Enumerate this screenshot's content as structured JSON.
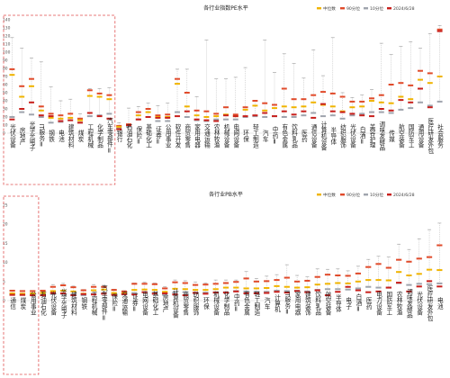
{
  "legend_labels": [
    "中位数",
    "90分位",
    "10分位",
    "2024/6/28"
  ],
  "chart_data": [
    {
      "type": "box",
      "title": "各行业指数PE水平",
      "ylim": [
        0,
        140
      ],
      "yticks": [
        0,
        10,
        20,
        30,
        40,
        50,
        60,
        70,
        80,
        90,
        100,
        110,
        120,
        130,
        140
      ],
      "grid": false,
      "legend_position": "top-right",
      "categories": [
        "光伏设备",
        "房地产",
        "光学光电子",
        "IT服务Ⅱ",
        "钢铁",
        "电池",
        "建筑材料",
        "煤炭",
        "工程机械",
        "化学制品",
        "汽车零部件Ⅱ",
        "银行",
        "石油石化",
        "保险Ⅱ",
        "基础化工",
        "证券Ⅱ",
        "公用事业",
        "软件开发",
        "商贸零售",
        "家用电器",
        "交通运输",
        "农林牧渔",
        "机械设备",
        "电网设备",
        "环保",
        "轻工制造",
        "汽车",
        "中药Ⅱ",
        "有色金属",
        "饮料乳品",
        "医药",
        "通信设备",
        "计算机设备",
        "半导体",
        "纺织服饰",
        "光伏设备",
        "白酒Ⅱ",
        "美容护理",
        "调味发酵品",
        "传媒",
        "航空装备",
        "国防军工",
        "通用设备",
        "医疗研发外包",
        "社会服务"
      ],
      "series": [
        {
          "name": "90分位",
          "values": [
            79,
            58,
            67,
            33,
            24,
            22,
            24,
            18,
            53,
            49,
            47,
            9,
            11,
            26,
            30,
            22,
            23,
            67,
            50,
            28,
            27,
            24,
            32,
            23,
            32,
            40,
            37,
            35,
            55,
            42,
            42,
            47,
            51,
            49,
            45,
            39,
            39,
            43,
            47,
            60,
            62,
            59,
            77,
            74,
            128
          ]
        },
        {
          "name": "中位数",
          "values": [
            72,
            45,
            58,
            28,
            19,
            18,
            19,
            16,
            46,
            45,
            42,
            8,
            10,
            22,
            26,
            20,
            20,
            61,
            33,
            22,
            20,
            21,
            23,
            21,
            29,
            34,
            28,
            31,
            33,
            32,
            33,
            38,
            35,
            33,
            27,
            32,
            33,
            40,
            38,
            37,
            45,
            42,
            66,
            62,
            70
          ]
        },
        {
          "name": "10分位",
          "values": [
            20,
            26,
            23,
            20,
            13,
            14,
            16,
            13,
            21,
            22,
            24,
            6,
            8,
            17,
            20,
            15,
            15,
            26,
            20,
            16,
            15,
            17,
            17,
            17,
            20,
            21,
            20,
            21,
            20,
            20,
            22,
            25,
            21,
            22,
            18,
            22,
            24,
            26,
            26,
            25,
            29,
            31,
            38,
            34,
            39
          ]
        },
        {
          "name": "2024/6/28",
          "values": [
            17,
            30,
            38,
            22,
            21,
            15,
            16,
            13,
            25,
            21,
            18,
            5,
            10,
            17,
            20,
            19,
            19,
            21,
            27,
            17,
            16,
            15,
            22,
            21,
            21,
            22,
            25,
            21,
            27,
            23,
            27,
            19,
            36,
            27,
            26,
            24,
            22,
            21,
            30,
            28,
            41,
            38,
            55,
            32,
            126
          ]
        }
      ],
      "whisker_top": [
        118,
        105,
        93,
        88,
        57,
        40,
        42,
        24,
        55,
        55,
        56,
        13,
        31,
        33,
        37,
        34,
        37,
        79,
        79,
        45,
        115,
        67,
        67,
        69,
        81,
        40,
        115,
        75,
        98,
        86,
        68,
        103,
        71,
        118,
        50,
        44,
        47,
        54,
        111,
        97,
        107,
        113,
        105,
        123,
        133
      ],
      "highlight_box_categories": [
        "光伏设备",
        "房地产",
        "光学光电子",
        "IT服务Ⅱ",
        "钢铁",
        "电池",
        "建筑材料",
        "煤炭",
        "工程机械",
        "化学制品",
        "汽车零部件Ⅱ"
      ]
    },
    {
      "type": "box",
      "title": "各行业PB水平",
      "ylim": [
        0,
        25
      ],
      "yticks": [
        0,
        5,
        10,
        15,
        20,
        25
      ],
      "grid": false,
      "legend_position": "top-right",
      "categories": [
        "通信",
        "煤炭",
        "公用事业",
        "石油石化",
        "光伏设备",
        "光学光电子",
        "建筑材料",
        "钢铁",
        "工程机械",
        "汽车零部件Ⅱ",
        "保险Ⅱ",
        "交通运输",
        "证券Ⅱ",
        "电网设备",
        "基础化工",
        "房地产",
        "计算机设备",
        "商贸零售",
        "纺织服饰",
        "环保",
        "机械设备",
        "化学制品",
        "中药Ⅱ",
        "有色金属",
        "轻工制造",
        "汽车",
        "计算机",
        "IT服务Ⅱ",
        "家用电器",
        "建筑装饰",
        "饮料乳品",
        "航空装备",
        "半导体",
        "电子",
        "白酒Ⅱ",
        "医药",
        "电力设备",
        "国防军工",
        "农林牧渔",
        "调味发酵品",
        "光伏设备",
        "医疗研发外包",
        "电池"
      ],
      "series": [
        {
          "name": "90分位",
          "values": [
            2.6,
            2.5,
            2.5,
            2.6,
            3.6,
            4.0,
            3.5,
            2.7,
            3.6,
            3.6,
            2.8,
            2.4,
            4.4,
            4.4,
            4.3,
            3.2,
            4.8,
            4.6,
            4.1,
            4.2,
            4.4,
            4.6,
            4.9,
            5.8,
            5.0,
            5.1,
            5.4,
            6.0,
            5.0,
            5.2,
            6.2,
            6.8,
            6.6,
            6.5,
            7.1,
            8.8,
            9.6,
            8.6,
            10.7,
            10.2,
            11.0,
            11.4,
            14.5
          ]
        },
        {
          "name": "中位数",
          "values": [
            1.9,
            1.8,
            1.9,
            2.0,
            2.5,
            2.6,
            2.4,
            1.8,
            2.7,
            2.9,
            2.0,
            1.9,
            2.8,
            2.9,
            2.8,
            2.3,
            3.1,
            3.0,
            2.8,
            2.8,
            3.0,
            3.4,
            3.4,
            3.2,
            3.2,
            3.3,
            3.8,
            3.6,
            3.4,
            3.5,
            4.2,
            4.4,
            4.6,
            4.5,
            5.0,
            5.4,
            5.4,
            5.3,
            7.5,
            6.6,
            7.0,
            8.1,
            8.0
          ]
        },
        {
          "name": "10分位",
          "values": [
            1.7,
            1.5,
            1.6,
            1.5,
            1.7,
            1.8,
            1.6,
            1.4,
            1.8,
            1.9,
            1.7,
            1.6,
            2.0,
            2.2,
            2.1,
            1.5,
            2.1,
            2.2,
            2.1,
            2.1,
            2.2,
            2.2,
            2.5,
            2.4,
            2.3,
            2.3,
            2.6,
            2.5,
            2.6,
            2.4,
            2.8,
            3.0,
            3.0,
            2.9,
            3.2,
            3.6,
            3.4,
            3.4,
            4.6,
            4.1,
            4.4,
            4.3,
            4.5
          ]
        },
        {
          "name": "2024/6/28",
          "values": [
            1.5,
            1.5,
            1.4,
            1.4,
            2.0,
            1.9,
            1.4,
            1.7,
            1.6,
            1.8,
            1.5,
            1.7,
            1.6,
            2.2,
            1.8,
            1.9,
            1.6,
            1.4,
            2.0,
            1.8,
            2.1,
            2.1,
            2.4,
            1.9,
            1.9,
            2.0,
            2.3,
            2.1,
            2.5,
            2.2,
            2.7,
            1.4,
            2.3,
            3.6,
            2.7,
            2.2,
            2.4,
            3.4,
            4.7,
            2.4,
            3.7,
            5.1,
            3.7
          ]
        }
      ],
      "whisker_top": [
        2.7,
        2.6,
        2.6,
        2.7,
        4.2,
        4.5,
        3.8,
        2.9,
        4.2,
        4.0,
        3.0,
        2.6,
        4.6,
        4.8,
        4.6,
        3.6,
        5.4,
        5.2,
        4.9,
        4.6,
        5.4,
        5.4,
        5.4,
        7.6,
        5.8,
        6.4,
        6.8,
        9.4,
        6.6,
        6.2,
        8.3,
        8.2,
        8.3,
        7.8,
        9.0,
        10.8,
        11.6,
        11.4,
        14.8,
        13.4,
        16.2,
        18.6,
        20.3
      ],
      "highlight_box_categories": [
        "通信",
        "煤炭",
        "公用事业"
      ]
    }
  ]
}
